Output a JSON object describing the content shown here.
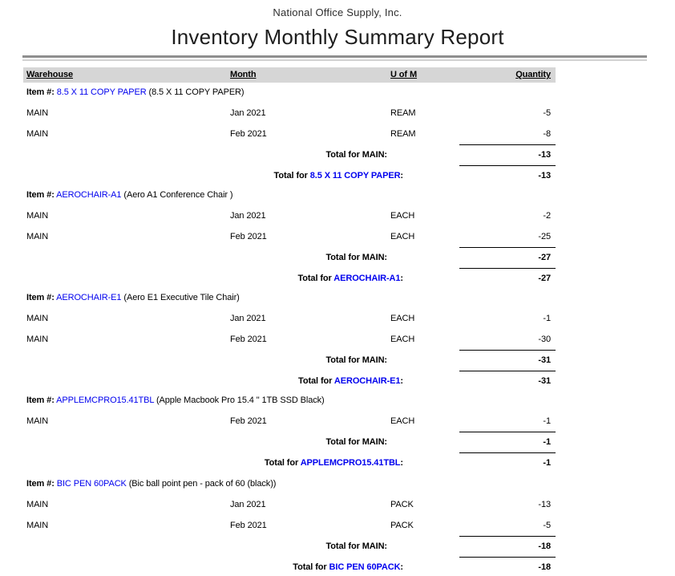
{
  "header": {
    "company": "National Office Supply, Inc.",
    "title": "Inventory Monthly Summary Report"
  },
  "columns": {
    "warehouse": "Warehouse",
    "month": "Month",
    "uom": "U of M",
    "quantity": "Quantity"
  },
  "labels": {
    "item_prefix": "Item #:",
    "total_prefix": "Total for"
  },
  "colors": {
    "link_blue": "#0000ee",
    "band_gray": "#d6d6d6",
    "rule_dark": "#8f8f8f",
    "rule_light": "#d2d2d2"
  },
  "sections": [
    {
      "code": "8.5 X 11 COPY PAPER",
      "desc": "(8.5 X 11 COPY PAPER)",
      "rows": [
        {
          "warehouse": "MAIN",
          "month": "Jan 2021",
          "uom": "REAM",
          "qty": "-5"
        },
        {
          "warehouse": "MAIN",
          "month": "Feb 2021",
          "uom": "REAM",
          "qty": "-8"
        }
      ],
      "warehouse_total": {
        "warehouse": "MAIN",
        "qty": "-13"
      },
      "item_total_qty": "-13"
    },
    {
      "code": "AEROCHAIR-A1",
      "desc": "(Aero A1 Conference Chair )",
      "rows": [
        {
          "warehouse": "MAIN",
          "month": "Jan 2021",
          "uom": "EACH",
          "qty": "-2"
        },
        {
          "warehouse": "MAIN",
          "month": "Feb 2021",
          "uom": "EACH",
          "qty": "-25"
        }
      ],
      "warehouse_total": {
        "warehouse": "MAIN",
        "qty": "-27"
      },
      "item_total_qty": "-27"
    },
    {
      "code": "AEROCHAIR-E1",
      "desc": "(Aero E1 Executive Tile Chair)",
      "rows": [
        {
          "warehouse": "MAIN",
          "month": "Jan 2021",
          "uom": "EACH",
          "qty": "-1"
        },
        {
          "warehouse": "MAIN",
          "month": "Feb 2021",
          "uom": "EACH",
          "qty": "-30"
        }
      ],
      "warehouse_total": {
        "warehouse": "MAIN",
        "qty": "-31"
      },
      "item_total_qty": "-31"
    },
    {
      "code": "APPLEMCPRO15.41TBL",
      "desc": "(Apple Macbook Pro 15.4 \" 1TB SSD Black)",
      "rows": [
        {
          "warehouse": "MAIN",
          "month": "Feb 2021",
          "uom": "EACH",
          "qty": "-1"
        }
      ],
      "warehouse_total": {
        "warehouse": "MAIN",
        "qty": "-1"
      },
      "item_total_qty": "-1"
    },
    {
      "code": "BIC PEN 60PACK",
      "desc": "(Bic ball point pen - pack of 60 (black))",
      "rows": [
        {
          "warehouse": "MAIN",
          "month": "Jan 2021",
          "uom": "PACK",
          "qty": "-13"
        },
        {
          "warehouse": "MAIN",
          "month": "Feb 2021",
          "uom": "PACK",
          "qty": "-5"
        }
      ],
      "warehouse_total": {
        "warehouse": "MAIN",
        "qty": "-18"
      },
      "item_total_qty": "-18"
    }
  ],
  "layout": {
    "section_tops": [
      102,
      230,
      358,
      486,
      590
    ]
  }
}
